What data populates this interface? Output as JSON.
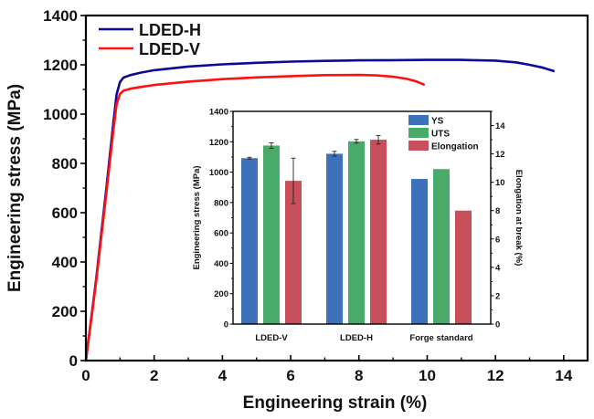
{
  "chart_data": [
    {
      "type": "line",
      "title": "",
      "xlabel": "Engineering strain (%)",
      "ylabel": "Engineering stress (MPa)",
      "xlim": [
        0,
        14.7
      ],
      "ylim": [
        0,
        1400
      ],
      "xticks": [
        0,
        2,
        4,
        6,
        8,
        10,
        12,
        14
      ],
      "xtick_labels": [
        "0",
        "2",
        "4",
        "6",
        "8",
        "10",
        "12",
        "14"
      ],
      "yticks": [
        0,
        200,
        400,
        600,
        800,
        1000,
        1200,
        1400
      ],
      "ytick_labels": [
        "0",
        "200",
        "400",
        "600",
        "800",
        "1000",
        "1200",
        "1400"
      ],
      "grid": false,
      "legend_position": "top-left",
      "series": [
        {
          "name": "LDED-H",
          "color": "#0a0a9a",
          "x": [
            0,
            0.3,
            0.6,
            0.8,
            0.9,
            1.0,
            1.1,
            1.3,
            1.6,
            2,
            3,
            4,
            5,
            6,
            7,
            8,
            9,
            10,
            11,
            12,
            12.6,
            13,
            13.4,
            13.7
          ],
          "y": [
            0,
            330,
            700,
            960,
            1080,
            1130,
            1148,
            1158,
            1168,
            1178,
            1193,
            1202,
            1208,
            1213,
            1216,
            1218,
            1219,
            1220,
            1220,
            1217,
            1210,
            1200,
            1188,
            1175
          ]
        },
        {
          "name": "LDED-V",
          "color": "#ff1010",
          "x": [
            0,
            0.3,
            0.6,
            0.8,
            0.9,
            1.0,
            1.1,
            1.3,
            1.6,
            2,
            3,
            4,
            5,
            6,
            7,
            8,
            8.5,
            9,
            9.4,
            9.7,
            9.9
          ],
          "y": [
            0,
            320,
            680,
            930,
            1040,
            1082,
            1095,
            1103,
            1110,
            1118,
            1132,
            1142,
            1149,
            1154,
            1158,
            1159,
            1157,
            1152,
            1143,
            1132,
            1120
          ]
        }
      ]
    },
    {
      "type": "bar",
      "title": "",
      "xlabel": "",
      "ylabel": "Engineering stress (MPa)",
      "ylabel_right": "Elongation at break (%)",
      "categories": [
        "LDED-V",
        "LDED-H",
        "Forge standard"
      ],
      "ylim": [
        0,
        1400
      ],
      "ylim_right": [
        0,
        15
      ],
      "yticks": [
        0,
        200,
        400,
        600,
        800,
        1000,
        1200,
        1400
      ],
      "ytick_labels": [
        "0",
        "200",
        "400",
        "600",
        "800",
        "1000",
        "1200",
        "1400"
      ],
      "yticks_right": [
        0,
        2,
        4,
        6,
        8,
        10,
        12,
        14
      ],
      "ytick_labels_right": [
        "0",
        "2",
        "4",
        "6",
        "8",
        "10",
        "12",
        "14"
      ],
      "grid": false,
      "legend_position": "top-right",
      "series": [
        {
          "name": "YS",
          "axis": "left",
          "color": "#3d72bb",
          "values": [
            1092,
            1121,
            955
          ],
          "errors": [
            6,
            16,
            null
          ]
        },
        {
          "name": "UTS",
          "axis": "left",
          "color": "#4aaa6a",
          "values": [
            1175,
            1203,
            1020
          ],
          "errors": [
            18,
            12,
            null
          ]
        },
        {
          "name": "Elongation",
          "axis": "right",
          "color": "#c8505a",
          "values": [
            10.1,
            13.0,
            8.0
          ],
          "errors": [
            1.6,
            0.3,
            null
          ]
        }
      ]
    }
  ]
}
